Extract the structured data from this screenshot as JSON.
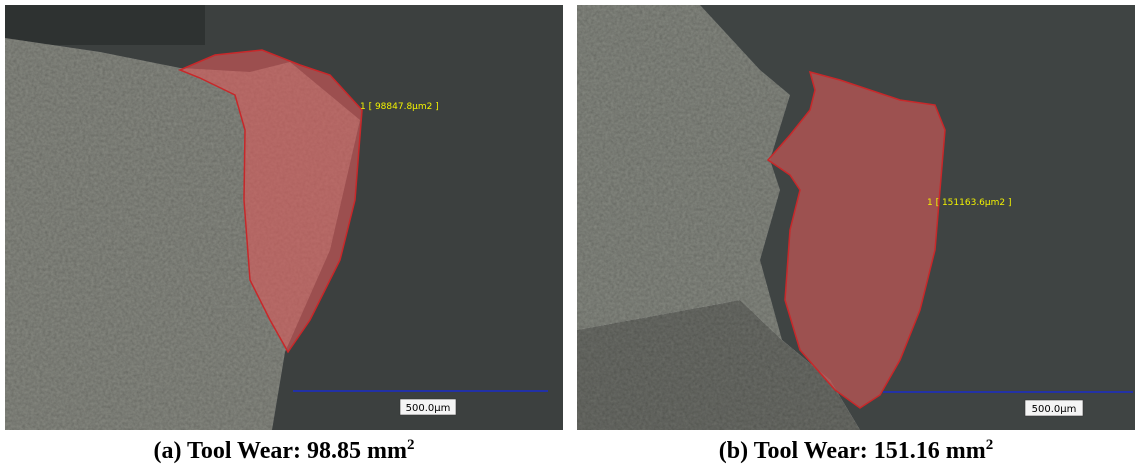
{
  "panels": [
    {
      "area_label": "1 [ 98847.8μm2 ]",
      "scale_label": "500.0μm",
      "caption": "(a) Tool Wear: 98.85 mm",
      "caption_sup": "2"
    },
    {
      "area_label": "1 [ 151163.6μm2 ]",
      "scale_label": "500.0μm",
      "caption": "(b) Tool Wear: 151.16 mm",
      "caption_sup": "2"
    }
  ]
}
